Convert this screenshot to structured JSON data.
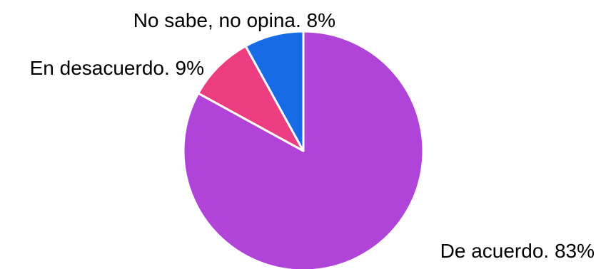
{
  "chart_data": {
    "type": "pie",
    "start_angle_deg": 0,
    "direction": "clockwise",
    "slices": [
      {
        "label": "De acuerdo",
        "value": 83,
        "display": "De acuerdo. 83%",
        "color": "#b044d8"
      },
      {
        "label": "En desacuerdo",
        "value": 9,
        "display": "En desacuerdo. 9%",
        "color": "#ec3d80"
      },
      {
        "label": "No sabe, no opina",
        "value": 8,
        "display": "No sabe, no opina. 8%",
        "color": "#176be6"
      }
    ],
    "title": "",
    "legend": "none"
  }
}
